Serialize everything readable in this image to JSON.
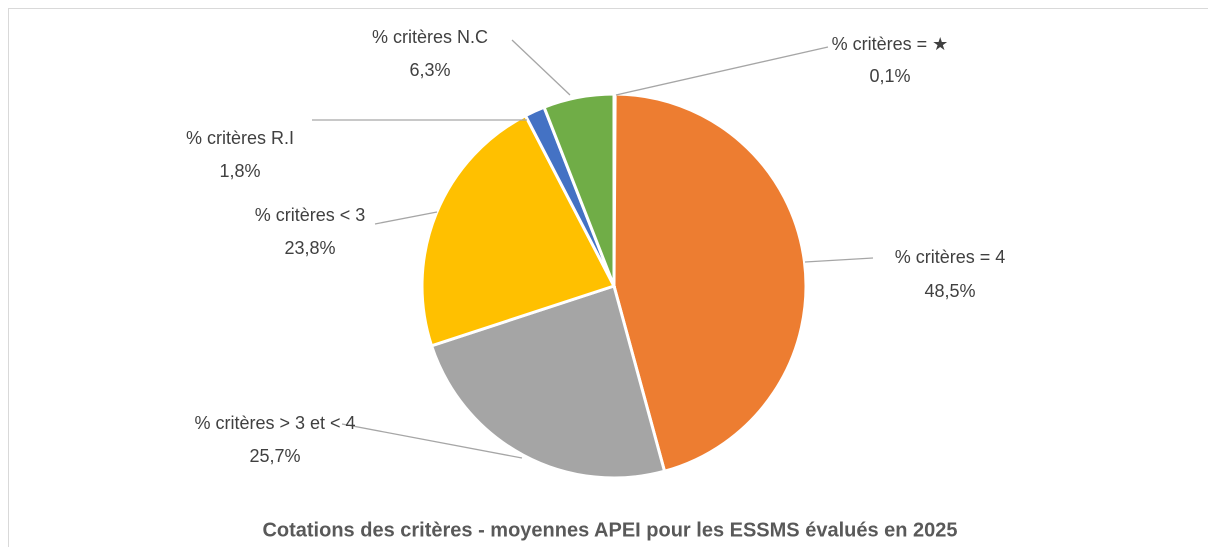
{
  "chart_data": {
    "type": "pie",
    "title": "Cotations des critères - moyennes APEI pour les ESSMS évalués en 2025",
    "categories": [
      "% critères = ★",
      "% critères = 4",
      "% critères > 3 et < 4",
      "% critères < 3",
      "% critères R.I",
      "% critères N.C"
    ],
    "values": [
      0.1,
      48.5,
      25.7,
      23.8,
      1.8,
      6.3
    ],
    "value_labels": [
      "0,1%",
      "48,5%",
      "25,7%",
      "23,8%",
      "1,8%",
      "6,3%"
    ],
    "colors": [
      "#5b9bd5",
      "#ed7d31",
      "#a5a5a5",
      "#ffc000",
      "#4472c4",
      "#70ad47"
    ]
  }
}
